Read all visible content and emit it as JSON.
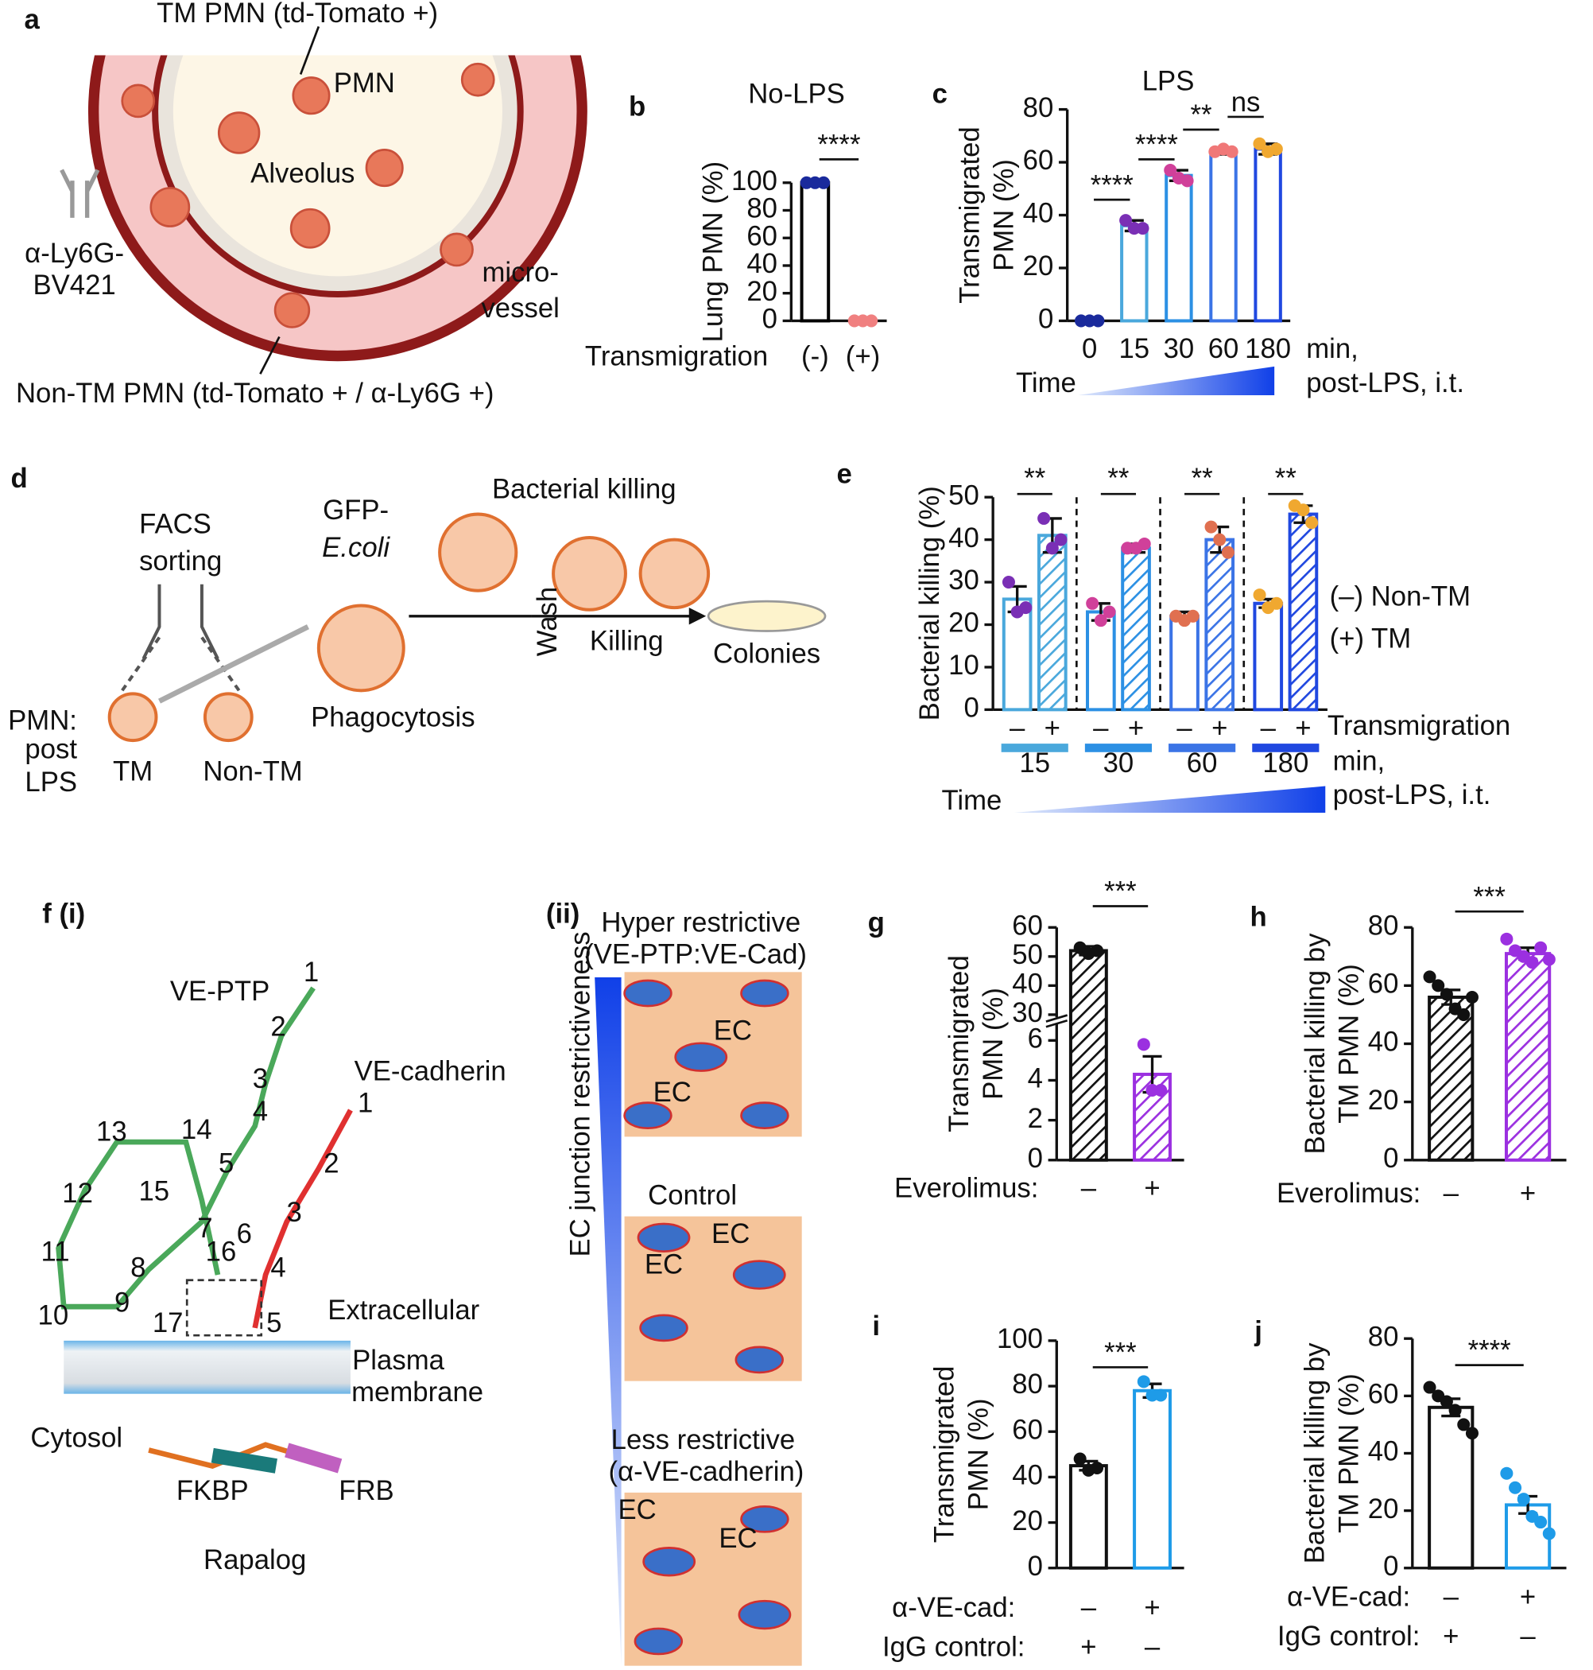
{
  "chart_data": [
    {
      "type": "bar",
      "panel": "b",
      "title": "No-LPS",
      "ylabel": [
        "Lung PMN (%)"
      ],
      "xlabel": [
        "Transmigration"
      ],
      "categories": [
        "(-)",
        "(+)"
      ],
      "values": [
        100,
        0
      ],
      "points": [
        [
          100,
          100,
          100
        ],
        [
          0,
          0,
          0
        ]
      ],
      "colors": [
        "#000000",
        "#e06666"
      ],
      "point_colors": [
        "#1a2a9c",
        "#f08080"
      ],
      "bar_style": "outline",
      "ylim": [
        0,
        100
      ],
      "yticks": [
        0,
        20,
        40,
        60,
        80,
        100
      ],
      "significance": [
        "****"
      ]
    },
    {
      "type": "bar",
      "panel": "c",
      "title": "LPS",
      "ylabel": [
        "Transmigrated",
        "PMN (%)"
      ],
      "xlabel": [
        "Time"
      ],
      "x_unit": [
        "min,",
        "post-LPS, i.t."
      ],
      "categories": [
        "0",
        "15",
        "30",
        "60",
        "180"
      ],
      "values": [
        0,
        36,
        55,
        64,
        65
      ],
      "errors": [
        0,
        2,
        2,
        1,
        2
      ],
      "points": [
        [
          0,
          0,
          0
        ],
        [
          38,
          35,
          35
        ],
        [
          57,
          54,
          53
        ],
        [
          64,
          65,
          64
        ],
        [
          67,
          64,
          65
        ]
      ],
      "colors": [
        "#1a2a9c",
        "#4aa8dc",
        "#2c90e4",
        "#3b74e6",
        "#2048e0"
      ],
      "point_colors": [
        "#1a2a9c",
        "#7a2fb5",
        "#d0409a",
        "#f07878",
        "#f0a830"
      ],
      "bar_style": "outline",
      "ylim": [
        0,
        80
      ],
      "yticks": [
        0,
        20,
        40,
        60,
        80
      ],
      "significance": [
        "****",
        "****",
        "**",
        "ns"
      ]
    },
    {
      "type": "grouped_bar",
      "panel": "e",
      "ylabel": [
        "Bacterial killing (%)"
      ],
      "xlabel": [
        "Time"
      ],
      "x_unit": [
        "min,",
        "post-LPS, i.t."
      ],
      "transmigration_label": "Transmigration",
      "sublabels": [
        "–",
        "+"
      ],
      "categories": [
        "15",
        "30",
        "60",
        "180"
      ],
      "category_colors": [
        "#4aa8dc",
        "#2c90e4",
        "#3b74e6",
        "#2048e0"
      ],
      "point_colors": [
        "#7a2fb5",
        "#d0409a",
        "#e07050",
        "#f0a830"
      ],
      "series": [
        {
          "name": "(–) Non-TM",
          "style": "outline",
          "values": [
            26,
            23,
            22,
            25
          ],
          "errors": [
            3,
            2,
            1,
            1
          ],
          "points": [
            [
              30,
              23,
              24
            ],
            [
              25,
              21,
              23
            ],
            [
              22,
              21,
              22
            ],
            [
              27,
              24,
              25
            ]
          ]
        },
        {
          "name": "(+) TM",
          "style": "hatched",
          "values": [
            41,
            38,
            40,
            46
          ],
          "errors": [
            4,
            1,
            3,
            2
          ],
          "points": [
            [
              45,
              38,
              40
            ],
            [
              38,
              38,
              39
            ],
            [
              43,
              40,
              37
            ],
            [
              48,
              47,
              44
            ]
          ]
        }
      ],
      "ylim": [
        0,
        50
      ],
      "yticks": [
        0,
        10,
        20,
        30,
        40,
        50
      ],
      "significance": [
        "**",
        "**",
        "**",
        "**"
      ]
    },
    {
      "type": "bar",
      "panel": "g",
      "ylabel": [
        "Transmigrated",
        "PMN (%)"
      ],
      "xlabel": [
        "Everolimus:"
      ],
      "categories": [
        "–",
        "+"
      ],
      "values": [
        52,
        4.3
      ],
      "errors": [
        1.5,
        0.9
      ],
      "points": [
        [
          53,
          51,
          52
        ],
        [
          5.8,
          3.5,
          3.5
        ]
      ],
      "colors": [
        "#111111",
        "#9b30e0"
      ],
      "bar_style": "hatched",
      "ylim": [
        0,
        60
      ],
      "axis_break": [
        7,
        28
      ],
      "yticks": [
        0,
        2,
        4,
        6,
        30,
        40,
        50,
        60
      ],
      "significance": [
        "***"
      ]
    },
    {
      "type": "bar",
      "panel": "h",
      "ylabel": [
        "Bacterial killing by",
        "TM PMN (%)"
      ],
      "xlabel": [
        "Everolimus:"
      ],
      "categories": [
        "–",
        "+"
      ],
      "values": [
        56,
        71
      ],
      "errors": [
        2.5,
        2
      ],
      "points": [
        [
          63,
          60,
          57,
          52,
          50,
          56
        ],
        [
          76,
          72,
          70,
          68,
          73,
          69
        ]
      ],
      "colors": [
        "#111111",
        "#9b30e0"
      ],
      "bar_style": "hatched",
      "ylim": [
        0,
        80
      ],
      "yticks": [
        0,
        20,
        40,
        60,
        80
      ],
      "significance": [
        "***"
      ]
    },
    {
      "type": "bar",
      "panel": "i",
      "ylabel": [
        "Transmigrated",
        "PMN (%)"
      ],
      "xlabel": [
        "α-VE-cad:",
        "IgG control:"
      ],
      "categories": [
        "–",
        "+"
      ],
      "categories2": [
        "+",
        "–"
      ],
      "values": [
        45,
        78
      ],
      "errors": [
        2,
        3
      ],
      "points": [
        [
          48,
          43,
          44
        ],
        [
          82,
          76,
          76
        ]
      ],
      "colors": [
        "#111111",
        "#1e9be8"
      ],
      "bar_style": "outline",
      "ylim": [
        0,
        100
      ],
      "yticks": [
        0,
        20,
        40,
        60,
        80,
        100
      ],
      "significance": [
        "***"
      ]
    },
    {
      "type": "bar",
      "panel": "j",
      "ylabel": [
        "Bacterial killing by",
        "TM PMN (%)"
      ],
      "xlabel": [
        "α-VE-cad:",
        "IgG control:"
      ],
      "categories": [
        "–",
        "+"
      ],
      "categories2": [
        "+",
        "–"
      ],
      "values": [
        56,
        22
      ],
      "errors": [
        3,
        3
      ],
      "points": [
        [
          63,
          60,
          58,
          55,
          50,
          47
        ],
        [
          33,
          28,
          24,
          18,
          16,
          12
        ]
      ],
      "colors": [
        "#111111",
        "#1e9be8"
      ],
      "bar_style": "outline",
      "ylim": [
        0,
        80
      ],
      "yticks": [
        0,
        20,
        40,
        60,
        80
      ],
      "significance": [
        "****"
      ]
    }
  ],
  "figure": {
    "a": [
      "a",
      "TM PMN (td-Tomato +)",
      "PMN",
      "Alveolus",
      "α-Ly6G-",
      "BV421",
      "micro-",
      "vessel",
      "Non-TM PMN (td-Tomato + / α-Ly6G +)"
    ],
    "d": [
      "d",
      "FACS",
      "sorting",
      "GFP-",
      "E.coli",
      "Bacterial killing",
      "PMN:",
      "post",
      "LPS",
      "TM",
      "Non-TM",
      "Phagocytosis",
      "Wash",
      "Killing",
      "Colonies"
    ],
    "f": [
      "f (i)",
      "VE-PTP",
      "VE-cadherin",
      "Extracellular",
      "Plasma",
      "membrane",
      "Cytosol",
      "FKBP",
      "FRB",
      "Rapalog"
    ],
    "f_ptp_domains": [
      "1",
      "2",
      "3",
      "4",
      "5",
      "6",
      "7",
      "8",
      "9",
      "10",
      "11",
      "12",
      "13",
      "14",
      "15",
      "16",
      "17"
    ],
    "f_cad_domains": [
      "1",
      "2",
      "3",
      "4",
      "5"
    ],
    "f_ii": [
      "(ii)",
      "Hyper restrictive",
      "(VE-PTP:VE-Cad)",
      "Control",
      "Less restrictive",
      "(α-VE-cadherin)",
      "EC junction restrictiveness",
      "EC",
      "EC",
      "EC",
      "EC",
      "EC",
      "EC"
    ]
  }
}
